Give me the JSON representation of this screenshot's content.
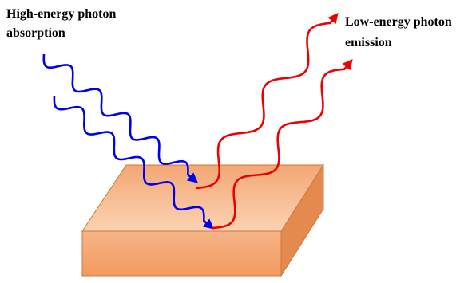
{
  "labels": {
    "absorption": [
      "High-energy photon",
      "absorption"
    ],
    "emission": [
      "Low-energy photon",
      "emission"
    ]
  }
}
